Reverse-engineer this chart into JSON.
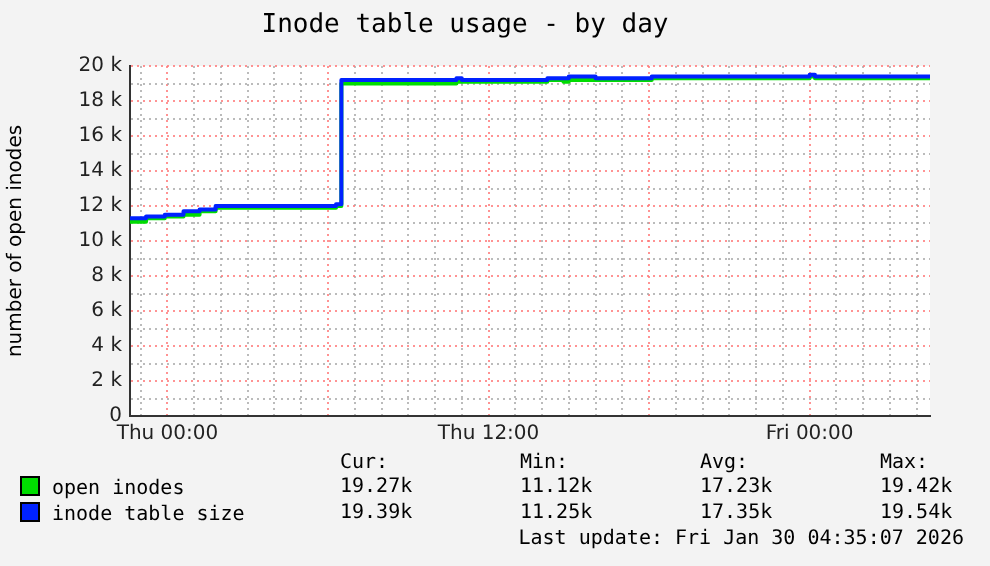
{
  "chart_data": {
    "type": "step",
    "title": "Inode table usage - by day",
    "ylabel": "number of open inodes",
    "xlim": [
      "2026-01-28T22:36",
      "2026-01-30T04:30"
    ],
    "xticks": [
      {
        "value": "2026-01-28T23:00",
        "label": null
      },
      {
        "value": "2026-01-29T00:00",
        "label": "Thu 00:00"
      },
      {
        "value": "2026-01-29T01:00",
        "label": null
      },
      {
        "value": "2026-01-29T02:00",
        "label": null
      },
      {
        "value": "2026-01-29T03:00",
        "label": null
      },
      {
        "value": "2026-01-29T04:00",
        "label": null
      },
      {
        "value": "2026-01-29T05:00",
        "label": null
      },
      {
        "value": "2026-01-29T06:00",
        "label": null
      },
      {
        "value": "2026-01-29T07:00",
        "label": null
      },
      {
        "value": "2026-01-29T08:00",
        "label": null
      },
      {
        "value": "2026-01-29T09:00",
        "label": null
      },
      {
        "value": "2026-01-29T10:00",
        "label": null
      },
      {
        "value": "2026-01-29T11:00",
        "label": null
      },
      {
        "value": "2026-01-29T12:00",
        "label": "Thu 12:00"
      },
      {
        "value": "2026-01-29T13:00",
        "label": null
      },
      {
        "value": "2026-01-29T14:00",
        "label": null
      },
      {
        "value": "2026-01-29T15:00",
        "label": null
      },
      {
        "value": "2026-01-29T16:00",
        "label": null
      },
      {
        "value": "2026-01-29T17:00",
        "label": null
      },
      {
        "value": "2026-01-29T18:00",
        "label": null
      },
      {
        "value": "2026-01-29T19:00",
        "label": null
      },
      {
        "value": "2026-01-29T20:00",
        "label": null
      },
      {
        "value": "2026-01-29T21:00",
        "label": null
      },
      {
        "value": "2026-01-29T22:00",
        "label": null
      },
      {
        "value": "2026-01-29T23:00",
        "label": null
      },
      {
        "value": "2026-01-30T00:00",
        "label": "Fri 00:00"
      },
      {
        "value": "2026-01-30T01:00",
        "label": null
      },
      {
        "value": "2026-01-30T02:00",
        "label": null
      },
      {
        "value": "2026-01-30T03:00",
        "label": null
      },
      {
        "value": "2026-01-30T04:00",
        "label": null
      }
    ],
    "ylim": [
      0,
      20000
    ],
    "yticks": [
      0,
      {
        "value": 1000,
        "label": null
      },
      {
        "value": 2000,
        "label": "2 k"
      },
      {
        "value": 3000,
        "label": null
      },
      {
        "value": 4000,
        "label": "4 k"
      },
      {
        "value": 5000,
        "label": null
      },
      {
        "value": 6000,
        "label": "6 k"
      },
      {
        "value": 7000,
        "label": null
      },
      {
        "value": 8000,
        "label": "8 k"
      },
      {
        "value": 9000,
        "label": null
      },
      {
        "value": 10000,
        "label": "10 k"
      },
      {
        "value": 11000,
        "label": null
      },
      {
        "value": 12000,
        "label": "12 k"
      },
      {
        "value": 13000,
        "label": null
      },
      {
        "value": 14000,
        "label": "14 k"
      },
      {
        "value": 15000,
        "label": null
      },
      {
        "value": 16000,
        "label": "16 k"
      },
      {
        "value": 17000,
        "label": null
      },
      {
        "value": 18000,
        "label": "18 k"
      },
      {
        "value": 19000,
        "label": null
      },
      {
        "value": 20000,
        "label": "20 k"
      }
    ],
    "grid": true,
    "legend": "bottom",
    "marker": "none",
    "line_style": "solid",
    "series": [
      {
        "name": "open inodes",
        "color": "#00dd00",
        "x": [
          "2026-01-28T22:36",
          "2026-01-28T23:12",
          "2026-01-28T23:54",
          "2026-01-29T00:36",
          "2026-01-29T01:12",
          "2026-01-29T01:48",
          "2026-01-29T06:18",
          "2026-01-29T06:30",
          "2026-01-29T10:48",
          "2026-01-29T11:00",
          "2026-01-29T14:12",
          "2026-01-29T14:48",
          "2026-01-29T15:00",
          "2026-01-29T16:00",
          "2026-01-29T18:06",
          "2026-01-30T00:00",
          "2026-01-30T00:12",
          "2026-01-30T04:30"
        ],
        "values": [
          11100,
          11300,
          11400,
          11500,
          11700,
          11900,
          12000,
          19000,
          19100,
          19100,
          19200,
          19100,
          19200,
          19200,
          19300,
          19400,
          19300,
          19300
        ]
      },
      {
        "name": "inode table size",
        "color": "#0022ff",
        "x": [
          "2026-01-28T22:36",
          "2026-01-28T23:12",
          "2026-01-28T23:54",
          "2026-01-29T00:36",
          "2026-01-29T01:12",
          "2026-01-29T01:48",
          "2026-01-29T06:18",
          "2026-01-29T06:30",
          "2026-01-29T10:48",
          "2026-01-29T11:00",
          "2026-01-29T14:12",
          "2026-01-29T14:48",
          "2026-01-29T15:00",
          "2026-01-29T16:00",
          "2026-01-29T18:06",
          "2026-01-30T00:00",
          "2026-01-30T00:12",
          "2026-01-30T04:30"
        ],
        "values": [
          11300,
          11400,
          11500,
          11700,
          11800,
          12000,
          12100,
          19200,
          19300,
          19200,
          19300,
          19300,
          19400,
          19300,
          19400,
          19500,
          19400,
          19400
        ]
      }
    ],
    "annotations": [
      "Cur:",
      "Min:",
      "Avg:",
      "Max:",
      "19.27k",
      "11.12k",
      "17.23k",
      "19.42k",
      "19.39k",
      "11.25k",
      "17.35k",
      "19.54k",
      "Last update: Fri Jan 30 04:35:07 2026"
    ]
  }
}
